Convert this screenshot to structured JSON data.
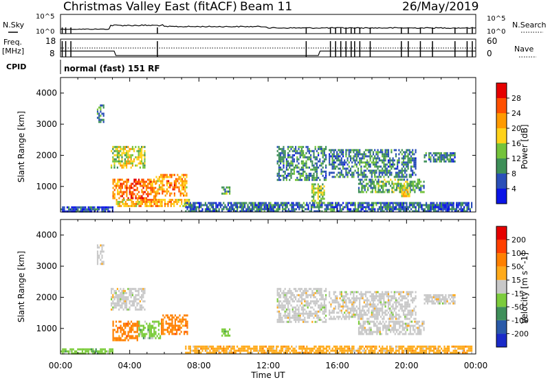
{
  "header": {
    "station": "Christmas Valley East (fitACF)",
    "beam": "Beam 11",
    "date": "26/May/2019"
  },
  "top_panels": {
    "nsky_label": "N.Sky",
    "nsky_ticks": [
      "10^5",
      "10^0"
    ],
    "nsearch_label": "N.Search",
    "nsearch_ticks": [
      "10^5",
      "10^0"
    ],
    "freq_label_1": "Freq.",
    "freq_label_2": "[MHz]",
    "freq_ticks": [
      "18",
      "8"
    ],
    "nave_label": "Nave",
    "nave_ticks": [
      "60",
      "0"
    ],
    "cpid_label": "CPID",
    "cpid_text": "normal (fast) 151 RF"
  },
  "chart_data": [
    {
      "type": "heatmap",
      "name": "power",
      "ylabel": "Slant Range [km]",
      "ylim": [
        180,
        4500
      ],
      "yticks": [
        1000,
        2000,
        3000,
        4000
      ],
      "xlim": [
        0,
        24
      ],
      "colorbar_label": "Power [dB]",
      "colorbar_ticks": [
        "4",
        "8",
        "12",
        "16",
        "20",
        "24",
        "28"
      ],
      "colorbar_colors": [
        "#0a14e6",
        "#2a4fb8",
        "#3e8f58",
        "#74c33b",
        "#ffd21a",
        "#ff9a00",
        "#ff5000",
        "#e60000"
      ],
      "regions": [
        {
          "t0": 2.1,
          "t1": 2.5,
          "r0": 3100,
          "r1": 3700,
          "level": 0.35
        },
        {
          "t0": 2.9,
          "t1": 4.9,
          "r0": 1600,
          "r1": 2300,
          "level": 0.55
        },
        {
          "t0": 3.0,
          "t1": 5.5,
          "r0": 600,
          "r1": 1250,
          "level": 0.85
        },
        {
          "t0": 5.5,
          "t1": 7.3,
          "r0": 700,
          "r1": 1400,
          "level": 0.75
        },
        {
          "t0": 3.2,
          "t1": 7.5,
          "r0": 350,
          "r1": 600,
          "level": 0.7
        },
        {
          "t0": 9.3,
          "t1": 9.8,
          "r0": 750,
          "r1": 1000,
          "level": 0.4
        },
        {
          "t0": 12.5,
          "t1": 15.3,
          "r0": 1200,
          "r1": 2300,
          "level": 0.3
        },
        {
          "t0": 14.5,
          "t1": 15.2,
          "r0": 500,
          "r1": 1100,
          "level": 0.5
        },
        {
          "t0": 15.5,
          "t1": 20.5,
          "r0": 1300,
          "r1": 2200,
          "level": 0.3
        },
        {
          "t0": 17.2,
          "t1": 21.0,
          "r0": 800,
          "r1": 1250,
          "level": 0.4
        },
        {
          "t0": 19.6,
          "t1": 20.2,
          "r0": 700,
          "r1": 1050,
          "level": 0.6
        },
        {
          "t0": 21.0,
          "t1": 22.8,
          "r0": 1800,
          "r1": 2100,
          "level": 0.3
        },
        {
          "t0": 7.2,
          "t1": 23.8,
          "r0": 200,
          "r1": 500,
          "level": 0.25
        },
        {
          "t0": 0.0,
          "t1": 3.0,
          "r0": 200,
          "r1": 360,
          "level": 0.2
        }
      ]
    },
    {
      "type": "heatmap",
      "name": "velocity",
      "ylabel": "Slant Range [km]",
      "xlabel": "Time UT",
      "ylim": [
        180,
        4500
      ],
      "yticks": [
        1000,
        2000,
        3000,
        4000
      ],
      "xlim": [
        0,
        24
      ],
      "xticks": [
        "00:00",
        "04:00",
        "08:00",
        "12:00",
        "16:00",
        "20:00",
        "00:00"
      ],
      "colorbar_label": "Velocity [m s^-1]",
      "colorbar_ticks": [
        "200",
        "100",
        "50",
        "15",
        "-15",
        "-50",
        "-100",
        "-200"
      ],
      "colorbar_colors": [
        "#1a2ac8",
        "#2a5aa8",
        "#3f8f5a",
        "#7ccc3c",
        "#c8c8c8",
        "#ffaa1a",
        "#ff8000",
        "#ff4000",
        "#e60000"
      ],
      "regions": [
        {
          "t0": 2.1,
          "t1": 2.5,
          "r0": 3100,
          "r1": 3700,
          "cat": 4
        },
        {
          "t0": 2.9,
          "t1": 4.9,
          "r0": 1600,
          "r1": 2300,
          "cat": 4
        },
        {
          "t0": 3.0,
          "t1": 4.5,
          "r0": 600,
          "r1": 1250,
          "cat": 6
        },
        {
          "t0": 4.5,
          "t1": 5.8,
          "r0": 700,
          "r1": 1250,
          "cat": 3
        },
        {
          "t0": 5.8,
          "t1": 7.3,
          "r0": 800,
          "r1": 1450,
          "cat": 6
        },
        {
          "t0": 9.3,
          "t1": 9.8,
          "r0": 800,
          "r1": 1000,
          "cat": 3
        },
        {
          "t0": 12.5,
          "t1": 15.3,
          "r0": 1200,
          "r1": 2300,
          "cat": 4
        },
        {
          "t0": 15.5,
          "t1": 20.5,
          "r0": 1300,
          "r1": 2200,
          "cat": 4
        },
        {
          "t0": 17.2,
          "t1": 21.0,
          "r0": 800,
          "r1": 1250,
          "cat": 4
        },
        {
          "t0": 21.0,
          "t1": 22.8,
          "r0": 1800,
          "r1": 2100,
          "cat": 4
        },
        {
          "t0": 7.2,
          "t1": 23.8,
          "r0": 200,
          "r1": 450,
          "cat": 5
        },
        {
          "t0": 0.0,
          "t1": 3.0,
          "r0": 200,
          "r1": 360,
          "cat": 3
        }
      ]
    }
  ]
}
